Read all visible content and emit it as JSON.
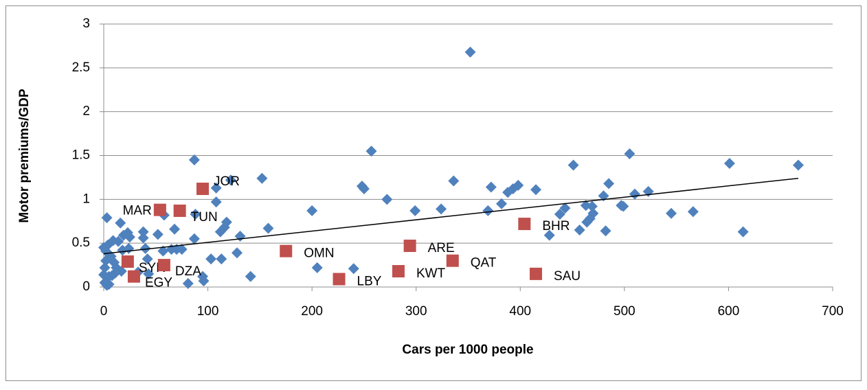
{
  "chart_data": {
    "type": "scatter",
    "x_label": "Cars per 1000 people",
    "y_label": "Motor premiums/GDP",
    "xlim": [
      0,
      700
    ],
    "xticks": [
      0,
      100,
      200,
      300,
      400,
      500,
      600,
      700
    ],
    "ylim": [
      0,
      3
    ],
    "yticks": [
      0,
      0.5,
      1,
      1.5,
      2,
      2.5,
      3
    ],
    "grid": true,
    "series": [
      {
        "color": "#4f81bd",
        "marker": "diamond",
        "x": [
          352,
          87,
          257,
          505,
          601,
          667,
          451,
          152,
          122,
          336,
          248,
          250,
          108,
          372,
          398,
          393,
          415,
          388,
          485,
          510,
          523,
          497,
          499,
          469,
          463,
          480,
          108,
          272,
          324,
          299,
          200,
          382,
          369,
          443,
          438,
          470,
          467,
          464,
          545,
          566,
          614,
          457,
          428,
          482,
          158,
          116,
          118,
          112,
          88,
          58,
          68,
          52,
          38,
          16,
          3,
          23,
          19,
          9,
          25,
          131,
          87,
          38,
          14,
          4,
          0,
          2,
          57,
          65,
          70,
          75,
          40,
          18,
          128,
          24,
          113,
          103,
          42,
          7,
          2,
          10,
          1,
          12,
          17,
          205,
          240,
          141,
          95,
          96,
          81,
          43,
          33,
          5,
          0,
          1,
          5,
          3,
          8,
          11
        ],
        "values": [
          2.68,
          1.45,
          1.55,
          1.52,
          1.41,
          1.39,
          1.39,
          1.24,
          1.22,
          1.21,
          1.15,
          1.12,
          1.13,
          1.14,
          1.16,
          1.12,
          1.11,
          1.08,
          1.18,
          1.06,
          1.09,
          0.93,
          0.92,
          0.92,
          0.93,
          1.04,
          0.97,
          1.0,
          0.89,
          0.87,
          0.87,
          0.95,
          0.87,
          0.9,
          0.83,
          0.84,
          0.78,
          0.74,
          0.84,
          0.86,
          0.63,
          0.65,
          0.59,
          0.64,
          0.67,
          0.68,
          0.74,
          0.63,
          0.83,
          0.82,
          0.66,
          0.6,
          0.63,
          0.73,
          0.79,
          0.62,
          0.59,
          0.53,
          0.57,
          0.58,
          0.55,
          0.56,
          0.52,
          0.48,
          0.45,
          0.41,
          0.41,
          0.43,
          0.43,
          0.43,
          0.44,
          0.42,
          0.39,
          0.44,
          0.32,
          0.32,
          0.32,
          0.35,
          0.3,
          0.28,
          0.22,
          0.22,
          0.18,
          0.22,
          0.21,
          0.12,
          0.12,
          0.07,
          0.04,
          0.15,
          0.17,
          0.12,
          0.14,
          0.05,
          0.03,
          0.02,
          0.13,
          0.16
        ]
      },
      {
        "color": "#c0504d",
        "marker": "square",
        "labels": [
          "MAR",
          "JOR",
          "TUN",
          "SYR",
          "DZA",
          "EGY",
          "OMN",
          "LBY",
          "KWT",
          "ARE",
          "QAT",
          "BHR",
          "SAU"
        ],
        "x": [
          54,
          95,
          73,
          23,
          58,
          29,
          175,
          226,
          283,
          294,
          335,
          404,
          415
        ],
        "values": [
          0.88,
          1.12,
          0.87,
          0.29,
          0.25,
          0.12,
          0.41,
          0.09,
          0.18,
          0.47,
          0.3,
          0.72,
          0.15
        ]
      }
    ],
    "trendline": {
      "color": "#000000",
      "x": [
        0,
        667
      ],
      "values": [
        0.38,
        1.24
      ]
    }
  }
}
